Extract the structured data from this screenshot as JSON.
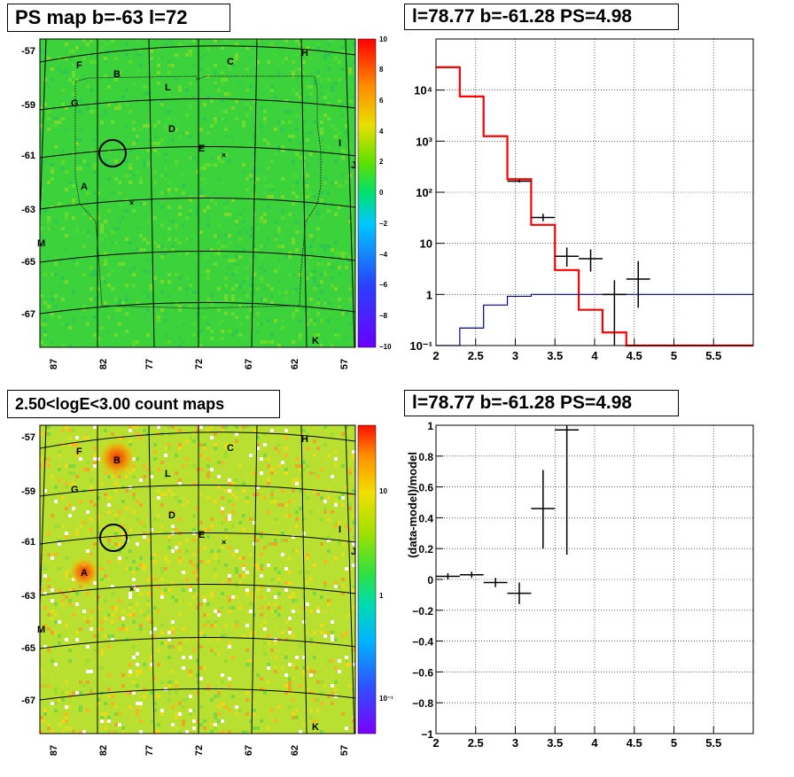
{
  "panels": {
    "ps_map": {
      "title": "PS map b=-63 l=72",
      "ytick_labels": [
        "-57",
        "-59",
        "-61",
        "-63",
        "-65",
        "-67"
      ],
      "xtick_labels": [
        "87",
        "82",
        "77",
        "72",
        "67",
        "62",
        "57"
      ],
      "colorbar_labels": [
        "10",
        "8",
        "6",
        "4",
        "2",
        "0",
        "−2",
        "−4",
        "−6",
        "−8",
        "−10"
      ],
      "source_labels": [
        "F",
        "B",
        "C",
        "H",
        "L",
        "G",
        "D",
        "I",
        "E",
        "J",
        "A",
        "M",
        "K"
      ]
    },
    "count_map": {
      "title": "2.50<logE<3.00 count maps",
      "ytick_labels": [
        "-57",
        "-59",
        "-61",
        "-63",
        "-65",
        "-67"
      ],
      "xtick_labels": [
        "87",
        "82",
        "77",
        "72",
        "67",
        "62",
        "57"
      ],
      "colorbar_labels": [
        "10",
        "1",
        "10⁻¹"
      ],
      "source_labels": [
        "F",
        "B",
        "C",
        "H",
        "L",
        "G",
        "D",
        "I",
        "E",
        "J",
        "A",
        "M",
        "K"
      ]
    },
    "spectrum": {
      "title": "l=78.77 b=-61.28 PS=4.98"
    },
    "residual": {
      "title": "l=78.77 b=-61.28 PS=4.98"
    }
  },
  "colors": {
    "model_line": "#ff0000",
    "background_line": "#000099",
    "data_points": "#000000",
    "grid": "#000000"
  },
  "chart_data": [
    {
      "type": "heatmap",
      "title": "PS map b=-63 l=72",
      "ytick_labels": [
        "-57",
        "-59",
        "-61",
        "-63",
        "-65",
        "-67"
      ],
      "xtick_labels": [
        "87",
        "82",
        "77",
        "72",
        "67",
        "62",
        "57"
      ],
      "colorbar_range": [
        -10,
        10
      ]
    },
    {
      "type": "line",
      "title": "l=78.77 b=-61.28 PS=4.98",
      "xlim": [
        2,
        6
      ],
      "ylim": [
        0.1,
        100000
      ],
      "log_y": true,
      "grid": true,
      "xticks": [
        2,
        2.5,
        3,
        3.5,
        4,
        4.5,
        5,
        5.5
      ],
      "xtick_labels": [
        "2",
        "2.5",
        "3",
        "3.5",
        "4",
        "4.5",
        "5",
        "5.5"
      ],
      "yticks": [
        0.1,
        1,
        10,
        100,
        1000,
        10000
      ],
      "ytick_labels": [
        "10⁻¹",
        "1",
        "10",
        "10²",
        "10³",
        "10⁴"
      ],
      "series": [
        {
          "kind": "step",
          "color": "#ff0000",
          "edges": [
            2,
            2.3,
            2.6,
            2.9,
            3.2,
            3.5,
            3.8,
            4.1,
            4.4,
            4.7,
            6.0
          ],
          "values": [
            28000,
            7500,
            1250,
            180,
            23,
            3,
            0.5,
            0.18,
            0.1,
            0.1
          ]
        },
        {
          "kind": "step",
          "color": "#000099",
          "edges": [
            2,
            2.3,
            2.6,
            2.9,
            3.2,
            3.5,
            3.8,
            4.1,
            4.4,
            4.7,
            6.0
          ],
          "values": [
            0.05,
            0.22,
            0.62,
            0.92,
            1.0,
            1.0,
            1.0,
            1.0,
            1.0,
            1.0
          ]
        },
        {
          "kind": "errorbar",
          "color": "#000000",
          "x": [
            3.05,
            3.35,
            3.65,
            3.95,
            4.25,
            4.55
          ],
          "y": [
            165,
            32,
            5.6,
            5.0,
            1.0,
            2.0
          ],
          "xerr": [
            0.15,
            0.15,
            0.15,
            0.15,
            0.15,
            0.15
          ],
          "ylo": [
            155,
            27,
            3.5,
            2.8,
            0.05,
            0.55
          ],
          "yhi": [
            175,
            38,
            8.3,
            7.6,
            1.9,
            4.5
          ]
        }
      ]
    },
    {
      "type": "heatmap",
      "title": "2.50<logE<3.00 count maps",
      "ytick_labels": [
        "-57",
        "-59",
        "-61",
        "-63",
        "-65",
        "-67"
      ],
      "xtick_labels": [
        "87",
        "82",
        "77",
        "72",
        "67",
        "62",
        "57"
      ],
      "colorbar_scale": "log"
    },
    {
      "type": "scatter",
      "title": "l=78.77 b=-61.28 PS=4.98",
      "ylabel": "(data-model)/model",
      "xlim": [
        2,
        6
      ],
      "ylim": [
        -1,
        1
      ],
      "grid": true,
      "xticks": [
        2,
        2.5,
        3,
        3.5,
        4,
        4.5,
        5,
        5.5
      ],
      "xtick_labels": [
        "2",
        "2.5",
        "3",
        "3.5",
        "4",
        "4.5",
        "5",
        "5.5"
      ],
      "yticks": [
        -1,
        -0.8,
        -0.6,
        -0.4,
        -0.2,
        0,
        0.2,
        0.4,
        0.6,
        0.8,
        1
      ],
      "ytick_labels": [
        "−1",
        "−0.8",
        "−0.6",
        "−0.4",
        "−0.2",
        "0",
        "0.2",
        "0.4",
        "0.6",
        "0.8",
        "1"
      ],
      "series": [
        {
          "kind": "errorbar",
          "color": "#000000",
          "x": [
            2.15,
            2.45,
            2.75,
            3.05,
            3.35,
            3.65
          ],
          "y": [
            0.02,
            0.03,
            -0.02,
            -0.09,
            0.46,
            0.97
          ],
          "xerr": [
            0.15,
            0.15,
            0.15,
            0.15,
            0.15,
            0.15
          ],
          "ylo": [
            0.0,
            0.01,
            -0.05,
            -0.16,
            0.2,
            0.16
          ],
          "yhi": [
            0.04,
            0.05,
            0.01,
            -0.02,
            0.71,
            1.0
          ]
        }
      ]
    }
  ]
}
